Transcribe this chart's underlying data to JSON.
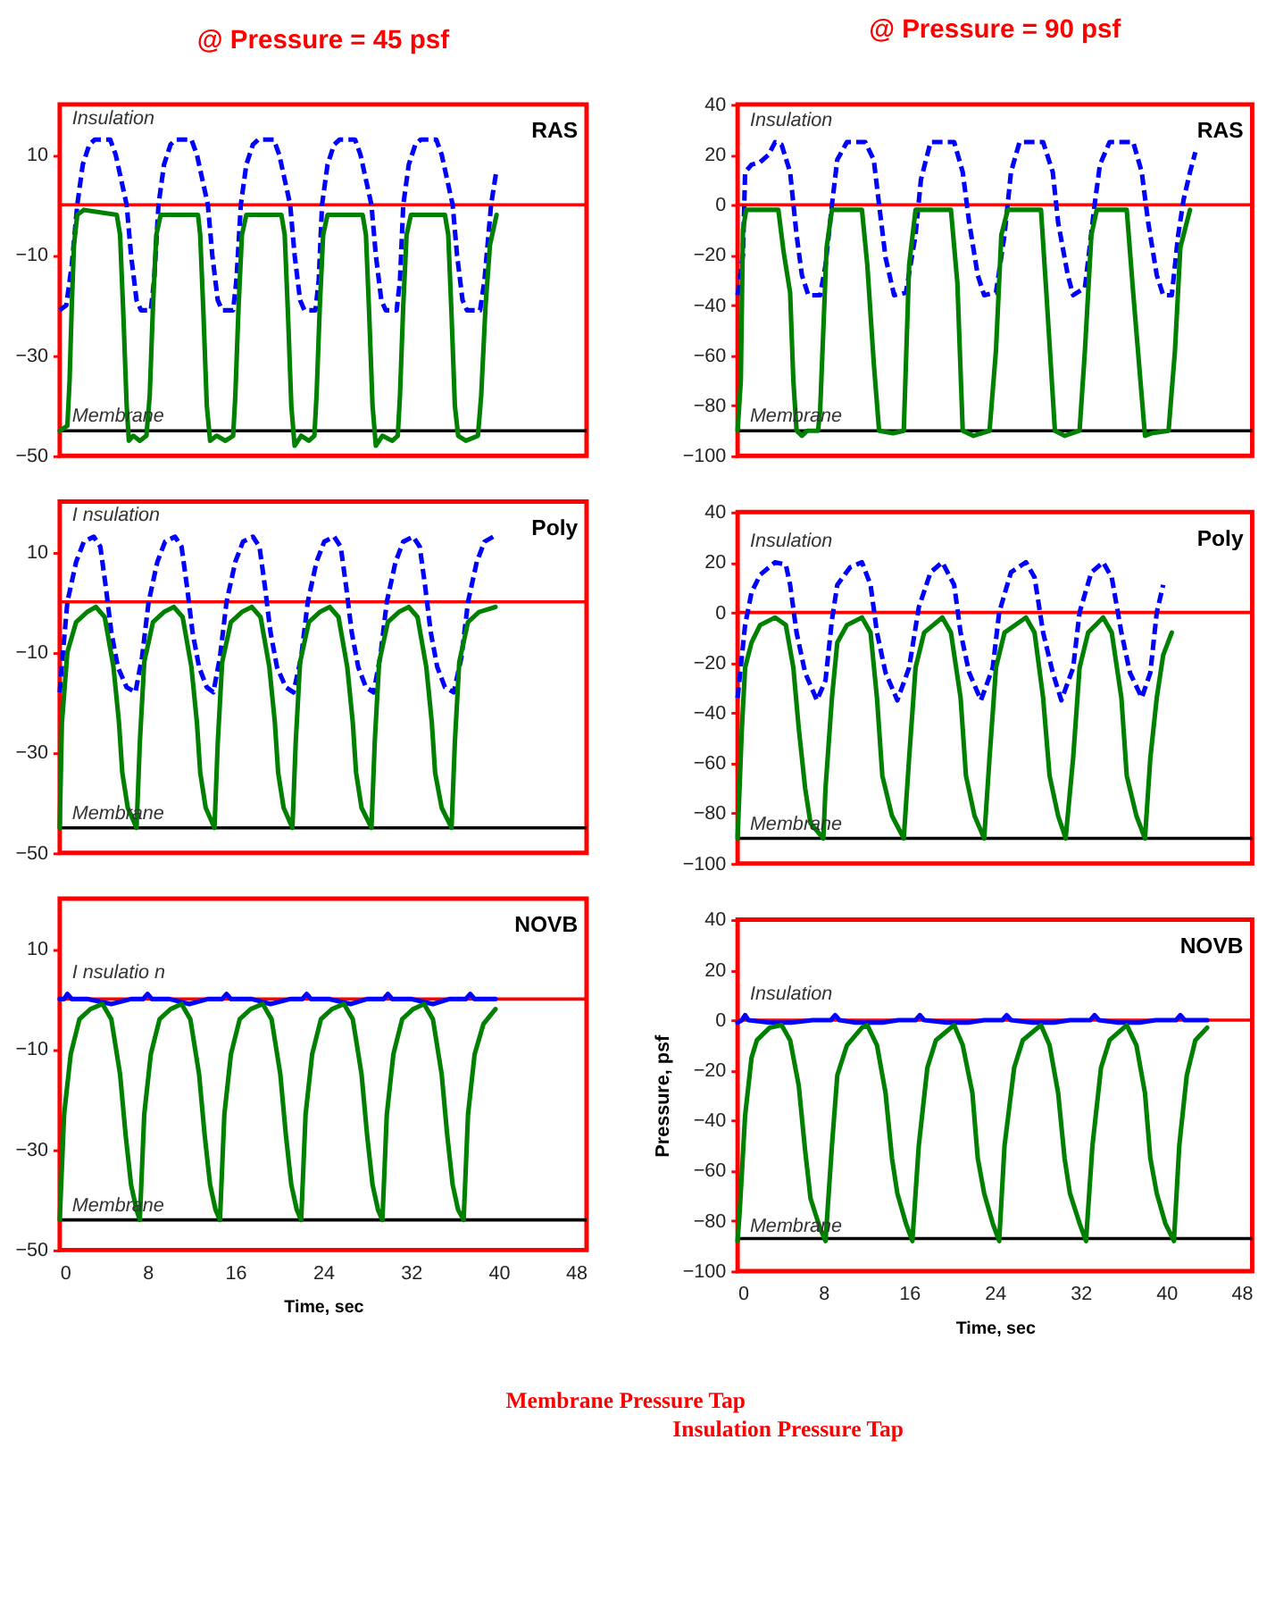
{
  "chart_data": [
    {
      "type": "line",
      "title": "@ Pressure = 45 psf",
      "annotations": [
        "RAS"
      ],
      "xlim": [
        0,
        48
      ],
      "xticks": [
        0,
        8,
        16,
        24,
        32,
        40,
        48
      ],
      "ylim": [
        -50,
        20
      ],
      "yticks": [
        -50,
        -30,
        -10,
        10
      ],
      "tick_labels": "y",
      "ref_lines": [
        {
          "axis": "y",
          "value": 0,
          "color": "#ff0000"
        },
        {
          "axis": "y",
          "value": -45,
          "color": "#000000"
        }
      ],
      "series": [
        {
          "name": "Insulation",
          "color": "#0000ff",
          "line_style": "dashed",
          "x": [
            0,
            0.6,
            1.1,
            1.6,
            2.1,
            2.7,
            3.2,
            4.6,
            5.1,
            5.6,
            6.1,
            6.5,
            7.0,
            7.4,
            8.3,
            8.6,
            9.0,
            9.5,
            10.1,
            10.6,
            12.0,
            12.5,
            13.0,
            13.5,
            13.9,
            14.4,
            14.8,
            15.8,
            16.1,
            16.5,
            17.0,
            17.6,
            18.1,
            19.5,
            20.0,
            20.5,
            21.0,
            21.4,
            21.9,
            22.3,
            23.3,
            23.6,
            23.9,
            24.4,
            25.0,
            25.5,
            26.9,
            27.4,
            27.9,
            28.4,
            28.8,
            29.3,
            29.7,
            30.7,
            31.0,
            31.3,
            31.8,
            32.4,
            32.9,
            34.3,
            34.8,
            35.3,
            35.8,
            36.2,
            36.7,
            37.1,
            38.3,
            38.7,
            39.3,
            39.8
          ],
          "values": [
            -21,
            -20,
            -12,
            0,
            8,
            12,
            13,
            13,
            10,
            5,
            0,
            -10,
            -19,
            -21,
            -21,
            -15,
            0,
            8,
            12,
            13,
            13,
            10,
            5,
            0,
            -10,
            -19,
            -21,
            -21,
            -15,
            0,
            8,
            12,
            13,
            13,
            10,
            5,
            0,
            -10,
            -19,
            -21,
            -21,
            -15,
            0,
            8,
            12,
            13,
            13,
            10,
            5,
            0,
            -10,
            -19,
            -21,
            -21,
            -15,
            0,
            8,
            12,
            13,
            13,
            10,
            5,
            0,
            -10,
            -19,
            -21,
            -21,
            -15,
            0,
            7
          ]
        },
        {
          "name": "Membrane",
          "color": "#008000",
          "line_style": "solid",
          "x": [
            0,
            0.7,
            0.9,
            1.1,
            1.3,
            1.6,
            2.2,
            5.2,
            5.5,
            5.8,
            6.1,
            6.3,
            6.7,
            7.3,
            7.9,
            8.2,
            8.5,
            8.8,
            9.2,
            12.6,
            12.8,
            13.1,
            13.4,
            13.7,
            14.3,
            15.1,
            15.8,
            16.0,
            16.3,
            16.6,
            17.0,
            20.2,
            20.5,
            20.8,
            21.1,
            21.4,
            22.0,
            22.7,
            23.2,
            23.4,
            23.7,
            24.0,
            24.4,
            27.6,
            27.9,
            28.2,
            28.5,
            28.8,
            29.4,
            30.3,
            30.8,
            31.0,
            31.3,
            31.6,
            32.0,
            35.1,
            35.4,
            35.7,
            36.0,
            36.3,
            37.0,
            38.1,
            38.4,
            38.8,
            39.2,
            39.8
          ],
          "values": [
            -45,
            -44,
            -35,
            -20,
            -8,
            -2,
            -1,
            -2,
            -6,
            -22,
            -40,
            -47,
            -46,
            -47,
            -46,
            -38,
            -20,
            -6,
            -2,
            -2,
            -6,
            -22,
            -40,
            -47,
            -46,
            -47,
            -46,
            -38,
            -20,
            -6,
            -2,
            -2,
            -6,
            -22,
            -40,
            -48,
            -46,
            -47,
            -46,
            -38,
            -20,
            -6,
            -2,
            -2,
            -6,
            -22,
            -40,
            -48,
            -46,
            -47,
            -46,
            -38,
            -20,
            -6,
            -2,
            -2,
            -6,
            -22,
            -40,
            -46,
            -47,
            -46,
            -38,
            -20,
            -8,
            -2
          ]
        }
      ]
    },
    {
      "type": "line",
      "title": "@ Pressure = 90 psf",
      "annotations": [
        "RAS"
      ],
      "xlim": [
        0,
        48
      ],
      "xticks": [
        0,
        8,
        16,
        24,
        32,
        40,
        48
      ],
      "ylim": [
        -100,
        40
      ],
      "yticks": [
        -100,
        -80,
        -60,
        -40,
        -20,
        0,
        20,
        40
      ],
      "tick_labels": "y",
      "ref_lines": [
        {
          "axis": "y",
          "value": 0,
          "color": "#ff0000"
        },
        {
          "axis": "y",
          "value": -90,
          "color": "#000000"
        }
      ],
      "series": [
        {
          "name": "Insulation",
          "color": "#0000ff",
          "line_style": "dashed",
          "x": [
            0,
            0.5,
            0.7,
            1.3,
            2.1,
            2.9,
            3.5,
            4.1,
            4.9,
            5.5,
            6.0,
            6.6,
            7.7,
            8.2,
            8.8,
            9.3,
            10.2,
            11.9,
            12.7,
            13.2,
            13.8,
            14.6,
            15.7,
            16.6,
            17.1,
            18.0,
            20.2,
            21.0,
            21.6,
            22.4,
            23.0,
            24.1,
            24.9,
            25.5,
            26.3,
            28.5,
            29.4,
            29.9,
            30.8,
            31.3,
            32.4,
            33.3,
            33.8,
            34.7,
            36.9,
            37.7,
            38.3,
            39.1,
            39.7,
            40.5,
            41.1,
            41.6,
            42.2,
            42.7
          ],
          "values": [
            -36,
            -20,
            13,
            16,
            17,
            20,
            25,
            24,
            13,
            -12,
            -28,
            -36,
            -36,
            -24,
            0,
            18,
            25,
            25,
            18,
            0,
            -21,
            -36,
            -35,
            -12,
            10,
            25,
            25,
            13,
            -7,
            -28,
            -36,
            -35,
            -12,
            13,
            25,
            25,
            13,
            -7,
            -28,
            -36,
            -33,
            0,
            16,
            25,
            25,
            13,
            -7,
            -28,
            -36,
            -36,
            -12,
            2,
            13,
            21
          ]
        },
        {
          "name": "Membrane",
          "color": "#008000",
          "line_style": "solid",
          "x": [
            0,
            0.3,
            0.5,
            0.8,
            3.8,
            4.3,
            4.9,
            5.2,
            5.5,
            6.0,
            6.5,
            7.5,
            7.7,
            8.3,
            8.8,
            11.6,
            12.1,
            12.7,
            13.2,
            14.5,
            15.5,
            16.0,
            16.6,
            19.9,
            20.5,
            21.0,
            22.0,
            23.5,
            24.1,
            24.6,
            25.2,
            28.3,
            28.8,
            29.6,
            30.5,
            31.9,
            32.4,
            33.0,
            33.5,
            36.3,
            36.9,
            38.0,
            38.6,
            40.2,
            40.8,
            41.3,
            42.2
          ],
          "values": [
            -90,
            -70,
            -10,
            -2,
            -2,
            -19,
            -35,
            -70,
            -90,
            -92,
            -90,
            -90,
            -82,
            -17,
            -2,
            -2,
            -24,
            -63,
            -90,
            -91,
            -90,
            -24,
            -2,
            -2,
            -31,
            -90,
            -92,
            -90,
            -58,
            -12,
            -2,
            -2,
            -35,
            -90,
            -92,
            -90,
            -58,
            -12,
            -2,
            -2,
            -35,
            -92,
            -91,
            -90,
            -58,
            -17,
            -2
          ]
        }
      ]
    },
    {
      "type": "line",
      "annotations": [
        "Poly"
      ],
      "xlim": [
        0,
        48
      ],
      "xticks": [
        0,
        8,
        16,
        24,
        32,
        40,
        48
      ],
      "ylim": [
        -50,
        20
      ],
      "yticks": [
        -50,
        -30,
        -10,
        10
      ],
      "tick_labels": "y",
      "ref_lines": [
        {
          "axis": "y",
          "value": 0,
          "color": "#ff0000"
        },
        {
          "axis": "y",
          "value": -45,
          "color": "#000000"
        }
      ],
      "series": [
        {
          "name": "I nsulation",
          "color": "#0000ff",
          "line_style": "dashed",
          "x": [
            0,
            0.3,
            0.7,
            1.5,
            2.2,
            3.1,
            3.7,
            4.2,
            4.7,
            5.3,
            6.1,
            6.9,
            7.5,
            8.1,
            8.9,
            9.6,
            10.5,
            11.1,
            11.6,
            12.1,
            12.7,
            13.4,
            14.0,
            14.6,
            15.2,
            16.0,
            16.7,
            17.6,
            18.2,
            18.7,
            19.2,
            19.8,
            20.6,
            21.3,
            22.0,
            22.6,
            23.4,
            24.1,
            25.0,
            25.6,
            26.1,
            26.6,
            27.2,
            27.9,
            28.6,
            29.2,
            29.8,
            30.6,
            31.3,
            32.2,
            32.8,
            33.3,
            33.8,
            34.4,
            35.1,
            35.9,
            36.6,
            37.2,
            38.0,
            38.7,
            39.5
          ],
          "values": [
            -18,
            -10,
            0,
            8,
            12,
            13,
            11,
            3,
            -6,
            -13,
            -17,
            -18,
            -11,
            0,
            8,
            12,
            13,
            11,
            3,
            -6,
            -13,
            -17,
            -18,
            -11,
            0,
            8,
            12,
            13,
            11,
            3,
            -6,
            -13,
            -17,
            -18,
            -11,
            0,
            8,
            12,
            13,
            11,
            3,
            -6,
            -13,
            -17,
            -18,
            -11,
            0,
            8,
            12,
            13,
            11,
            3,
            -6,
            -13,
            -17,
            -18,
            -11,
            0,
            8,
            12,
            13
          ]
        },
        {
          "name": "Membrane",
          "color": "#008000",
          "line_style": "solid",
          "x": [
            0,
            0.2,
            0.7,
            1.5,
            2.5,
            3.3,
            4.1,
            4.9,
            5.4,
            5.7,
            6.2,
            7.0,
            7.3,
            7.7,
            8.5,
            9.5,
            10.4,
            11.2,
            12.0,
            12.5,
            12.8,
            13.3,
            14.1,
            14.4,
            14.8,
            15.6,
            16.6,
            17.5,
            18.3,
            19.1,
            19.6,
            19.9,
            20.4,
            21.2,
            21.5,
            21.9,
            22.7,
            23.7,
            24.6,
            25.4,
            26.2,
            26.7,
            27.0,
            27.5,
            28.4,
            28.7,
            29.1,
            29.9,
            30.9,
            31.8,
            32.6,
            33.4,
            33.9,
            34.2,
            34.8,
            35.7,
            36.0,
            36.4,
            37.2,
            38.2,
            39.7
          ],
          "values": [
            -45,
            -24,
            -10,
            -4,
            -2,
            -1,
            -3,
            -13,
            -24,
            -34,
            -41,
            -45,
            -28,
            -12,
            -4,
            -2,
            -1,
            -3,
            -13,
            -24,
            -34,
            -41,
            -45,
            -28,
            -12,
            -4,
            -2,
            -1,
            -3,
            -13,
            -24,
            -34,
            -41,
            -45,
            -28,
            -12,
            -4,
            -2,
            -1,
            -3,
            -13,
            -24,
            -34,
            -41,
            -45,
            -28,
            -12,
            -4,
            -2,
            -1,
            -3,
            -13,
            -24,
            -34,
            -41,
            -45,
            -28,
            -12,
            -4,
            -2,
            -1
          ]
        }
      ]
    },
    {
      "type": "line",
      "annotations": [
        "Poly"
      ],
      "xlim": [
        0,
        48
      ],
      "xticks": [
        0,
        8,
        16,
        24,
        32,
        40,
        48
      ],
      "ylim": [
        -100,
        40
      ],
      "yticks": [
        -100,
        -80,
        -60,
        -40,
        -20,
        0,
        20,
        40
      ],
      "tick_labels": "y",
      "ref_lines": [
        {
          "axis": "y",
          "value": 0,
          "color": "#ff0000"
        },
        {
          "axis": "y",
          "value": -90,
          "color": "#000000"
        }
      ],
      "series": [
        {
          "name": "Insulation",
          "color": "#0000ff",
          "line_style": "dashed",
          "x": [
            0,
            0.7,
            1.3,
            2.1,
            3.5,
            4.5,
            4.9,
            5.5,
            6.3,
            7.4,
            8.2,
            8.8,
            9.3,
            10.5,
            11.6,
            12.4,
            13.0,
            13.8,
            14.9,
            16.0,
            16.9,
            18.0,
            19.1,
            20.2,
            20.8,
            21.6,
            22.7,
            23.8,
            24.4,
            25.5,
            26.9,
            27.7,
            28.5,
            29.4,
            30.2,
            31.3,
            31.9,
            33.0,
            34.1,
            34.9,
            35.8,
            36.6,
            37.7,
            38.5,
            39.1,
            39.7
          ],
          "values": [
            -34,
            -5,
            8,
            15,
            20,
            19,
            11,
            -8,
            -24,
            -35,
            -27,
            -3,
            11,
            18,
            20,
            11,
            -8,
            -24,
            -35,
            -22,
            2,
            16,
            20,
            11,
            -8,
            -24,
            -35,
            -22,
            0,
            16,
            20,
            14,
            -8,
            -24,
            -35,
            -22,
            0,
            16,
            20,
            14,
            -8,
            -24,
            -34,
            -24,
            0,
            11
          ]
        },
        {
          "name": "Membrane",
          "color": "#008000",
          "line_style": "solid",
          "x": [
            0,
            0.4,
            0.7,
            1.3,
            2.1,
            3.5,
            4.5,
            5.2,
            5.7,
            6.3,
            6.8,
            8.0,
            8.2,
            8.8,
            9.3,
            10.2,
            11.6,
            12.4,
            13.0,
            13.5,
            14.4,
            15.5,
            16.0,
            16.6,
            17.4,
            19.1,
            19.9,
            20.8,
            21.3,
            22.1,
            23.0,
            23.5,
            24.1,
            24.9,
            26.9,
            27.7,
            28.5,
            29.1,
            29.9,
            30.6,
            31.3,
            31.9,
            32.7,
            34.1,
            34.9,
            35.8,
            36.3,
            37.2,
            38.0,
            38.5,
            39.1,
            39.7,
            40.5
          ],
          "values": [
            -90,
            -46,
            -22,
            -12,
            -5,
            -2,
            -5,
            -22,
            -46,
            -70,
            -84,
            -90,
            -70,
            -34,
            -12,
            -5,
            -2,
            -8,
            -34,
            -65,
            -81,
            -90,
            -58,
            -22,
            -8,
            -2,
            -8,
            -34,
            -65,
            -81,
            -90,
            -58,
            -22,
            -8,
            -2,
            -8,
            -34,
            -65,
            -81,
            -90,
            -58,
            -22,
            -8,
            -2,
            -8,
            -34,
            -65,
            -81,
            -90,
            -58,
            -34,
            -17,
            -8
          ]
        }
      ]
    },
    {
      "type": "line",
      "annotations": [
        "NOVB"
      ],
      "xlabel": "Time, sec",
      "xlim": [
        0,
        48
      ],
      "xticks": [
        0,
        8,
        16,
        24,
        32,
        40,
        48
      ],
      "ylim": [
        -50,
        20
      ],
      "yticks": [
        -50,
        -30,
        -10,
        10
      ],
      "ref_lines": [
        {
          "axis": "y",
          "value": 0,
          "color": "#ff0000"
        },
        {
          "axis": "y",
          "value": -44,
          "color": "#000000"
        }
      ],
      "series": [
        {
          "name": "I nsulatio n",
          "color": "#0000ff",
          "line_style": "solid",
          "x": [
            0,
            0.4,
            0.7,
            1.1,
            2.5,
            4.7,
            6.5,
            7.6,
            8.0,
            8.4,
            10,
            11.8,
            13.5,
            14.8,
            15.2,
            15.6,
            17.5,
            19.2,
            21,
            22.1,
            22.5,
            22.9,
            24.5,
            26.5,
            28,
            29.5,
            29.9,
            30.3,
            32,
            34,
            35.5,
            37,
            37.4,
            37.8,
            39.7
          ],
          "values": [
            0,
            0,
            1,
            0,
            0,
            -1,
            0,
            0,
            1,
            0,
            0,
            -1,
            0,
            0,
            1,
            0,
            0,
            -1,
            0,
            0,
            1,
            0,
            0,
            -1,
            0,
            0,
            1,
            0,
            0,
            -1,
            0,
            0,
            1,
            0,
            0
          ]
        },
        {
          "name": "Membrane",
          "color": "#008000",
          "line_style": "solid",
          "x": [
            0,
            0.4,
            1.0,
            1.8,
            2.8,
            3.9,
            4.7,
            5.5,
            6.0,
            6.5,
            7.0,
            7.3,
            7.7,
            8.3,
            9.1,
            10.1,
            11.1,
            11.9,
            12.7,
            13.2,
            13.7,
            14.2,
            14.6,
            15.0,
            15.6,
            16.4,
            17.4,
            18.5,
            19.3,
            20.1,
            20.6,
            21.1,
            21.6,
            22.0,
            22.4,
            23.0,
            23.8,
            24.8,
            25.9,
            26.7,
            27.5,
            28.0,
            28.5,
            29.0,
            29.4,
            29.8,
            30.4,
            31.2,
            32.2,
            33.2,
            34.0,
            34.8,
            35.3,
            35.8,
            36.3,
            36.8,
            37.2,
            37.8,
            38.6,
            39.7
          ],
          "values": [
            -44,
            -23,
            -11,
            -4,
            -2,
            -1,
            -4,
            -15,
            -27,
            -37,
            -42,
            -44,
            -23,
            -11,
            -4,
            -2,
            -1,
            -4,
            -15,
            -27,
            -37,
            -42,
            -44,
            -23,
            -11,
            -4,
            -2,
            -1,
            -4,
            -15,
            -27,
            -37,
            -42,
            -44,
            -23,
            -11,
            -4,
            -2,
            -1,
            -4,
            -15,
            -27,
            -37,
            -42,
            -44,
            -23,
            -11,
            -4,
            -2,
            -1,
            -4,
            -15,
            -27,
            -37,
            -42,
            -44,
            -23,
            -11,
            -5,
            -2
          ]
        }
      ]
    },
    {
      "type": "line",
      "annotations": [
        "NOVB"
      ],
      "xlabel": "Time, sec",
      "ylabel": "Pressure, psf",
      "xlim": [
        0,
        48
      ],
      "xticks": [
        0,
        8,
        16,
        24,
        32,
        40,
        48
      ],
      "ylim": [
        -100,
        40
      ],
      "yticks": [
        -100,
        -80,
        -60,
        -40,
        -20,
        0,
        20,
        40
      ],
      "ref_lines": [
        {
          "axis": "y",
          "value": 0,
          "color": "#ff0000"
        },
        {
          "axis": "y",
          "value": -87,
          "color": "#000000"
        }
      ],
      "series": [
        {
          "name": "Insulation",
          "color": "#0000ff",
          "line_style": "solid",
          "x": [
            0,
            0.4,
            0.7,
            1.0,
            3,
            5,
            7,
            8.7,
            9.1,
            9.5,
            11,
            13.5,
            15,
            16.6,
            17.0,
            17.4,
            19.5,
            21.5,
            23,
            24.7,
            25.1,
            25.5,
            27.5,
            29.5,
            31,
            32.9,
            33.3,
            33.7,
            35.5,
            37.5,
            39,
            40.9,
            41.3,
            41.7,
            43.8
          ],
          "values": [
            -1,
            0,
            2,
            0,
            -1,
            -1,
            0,
            0,
            2,
            0,
            -1,
            -1,
            0,
            0,
            2,
            0,
            -1,
            -1,
            0,
            0,
            2,
            0,
            -1,
            -1,
            0,
            0,
            2,
            0,
            -1,
            -1,
            0,
            0,
            2,
            0,
            0
          ]
        },
        {
          "name": "Membrane",
          "color": "#008000",
          "line_style": "solid",
          "x": [
            0,
            0.2,
            0.7,
            1.3,
            1.8,
            3.0,
            4.1,
            4.9,
            5.7,
            6.3,
            6.8,
            7.7,
            8.2,
            8.8,
            9.3,
            10.2,
            11.6,
            12.1,
            13.0,
            13.8,
            14.4,
            14.9,
            15.7,
            16.3,
            16.9,
            17.7,
            18.5,
            20.2,
            21.0,
            21.9,
            22.4,
            23.0,
            23.8,
            24.4,
            24.9,
            25.8,
            26.6,
            28.3,
            29.1,
            29.9,
            30.5,
            31.0,
            31.9,
            32.5,
            33.1,
            33.9,
            34.7,
            36.3,
            37.2,
            38.0,
            38.5,
            39.1,
            39.9,
            40.7,
            41.2,
            41.9,
            42.7,
            43.8
          ],
          "values": [
            -88,
            -76,
            -38,
            -15,
            -8,
            -3,
            -2,
            -8,
            -26,
            -52,
            -71,
            -83,
            -88,
            -50,
            -22,
            -10,
            -3,
            -2,
            -10,
            -29,
            -55,
            -69,
            -81,
            -88,
            -50,
            -19,
            -8,
            -2,
            -10,
            -29,
            -55,
            -69,
            -81,
            -88,
            -50,
            -19,
            -8,
            -2,
            -10,
            -29,
            -55,
            -69,
            -81,
            -88,
            -50,
            -19,
            -8,
            -2,
            -10,
            -29,
            -55,
            -69,
            -81,
            -88,
            -50,
            -22,
            -8,
            -3
          ]
        }
      ]
    },
    {
      "type": "other",
      "annotations": [
        "Membrane Pressure Tap",
        "Insulation Pressure Tap"
      ]
    }
  ]
}
